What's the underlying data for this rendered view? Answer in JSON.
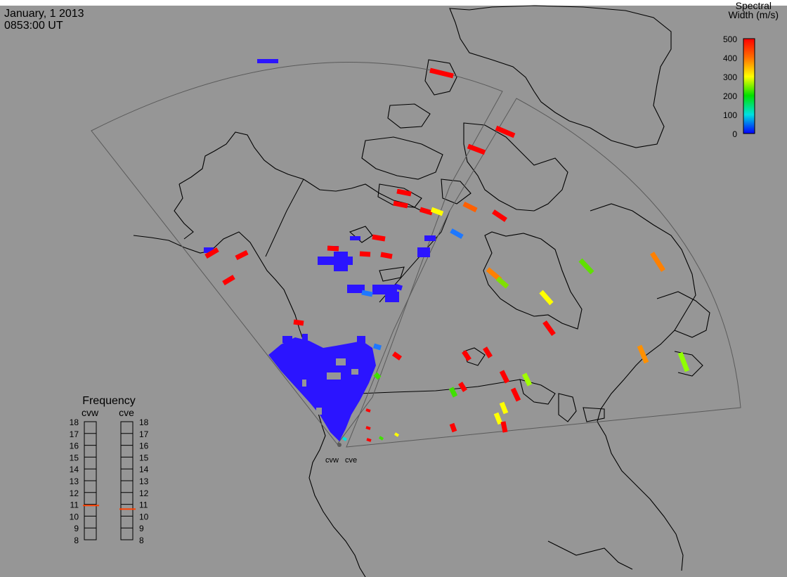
{
  "header": {
    "date": "January, 1 2013",
    "time": "0853:00 UT"
  },
  "colorbar": {
    "title_line1": "Spectral",
    "title_line2": "Width (m/s)",
    "ticks": [
      "500",
      "400",
      "300",
      "200",
      "100",
      "0"
    ],
    "stops": [
      "#ff0000",
      "#ff8000",
      "#ffff00",
      "#00e000",
      "#00e0e0",
      "#0000ff"
    ]
  },
  "radars": {
    "west": "cvw",
    "east": "cve"
  },
  "frequency_panel": {
    "title": "Frequency",
    "col_west": "cvw",
    "col_east": "cve",
    "levels": [
      "18",
      "17",
      "16",
      "15",
      "14",
      "13",
      "12",
      "11",
      "10",
      "9",
      "8"
    ],
    "cvw_value": 10.9,
    "cve_value": 10.6,
    "indicator_color": "#ff4000"
  },
  "colors": {
    "background": "#969696",
    "low_width": "#2b14ff",
    "map_lines": "#000000",
    "fov_lines": "#5a5a5a"
  }
}
